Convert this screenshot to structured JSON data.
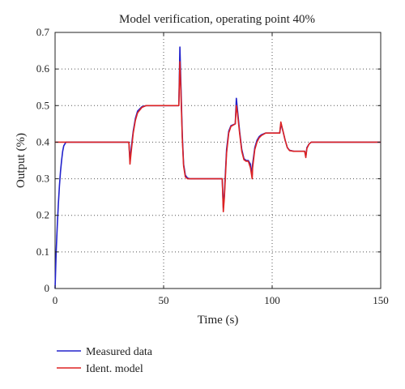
{
  "chart_data": {
    "type": "line",
    "title": "Model verification, operating point 40%",
    "xlabel": "Time (s)",
    "ylabel": "Output (%)",
    "xlim": [
      0,
      150
    ],
    "ylim": [
      0,
      0.7
    ],
    "xticks": [
      0,
      50,
      100,
      150
    ],
    "yticks": [
      0,
      0.1,
      0.2,
      0.3,
      0.4,
      0.5,
      0.6,
      0.7
    ],
    "xtick_labels": [
      "0",
      "50",
      "100",
      "150"
    ],
    "ytick_labels": [
      "0",
      "0.1",
      "0.2",
      "0.3",
      "0.4",
      "0.5",
      "0.6",
      "0.7"
    ],
    "grid": true,
    "grid_style": "dotted",
    "legend_position": "below plot, left",
    "series": [
      {
        "name": "Measured data",
        "color": "#2222cc",
        "x": [
          0,
          0.5,
          1,
          1.5,
          2,
          2.5,
          3,
          3.5,
          4,
          5,
          34,
          34.5,
          35,
          36,
          37,
          38,
          40,
          42,
          45,
          57,
          57.5,
          58,
          58.6,
          59.2,
          60,
          61,
          62,
          63,
          65,
          77,
          77.5,
          78,
          79,
          80,
          81,
          83,
          83.5,
          84,
          85,
          86,
          87,
          88,
          89,
          90,
          90.8,
          91,
          92,
          93,
          94,
          95,
          97,
          103.5,
          104,
          105,
          106,
          107,
          108,
          110,
          115,
          115.5,
          116,
          117,
          118,
          120,
          125,
          150
        ],
        "y": [
          0,
          0.1,
          0.17,
          0.23,
          0.28,
          0.32,
          0.35,
          0.375,
          0.39,
          0.4,
          0.4,
          0.35,
          0.38,
          0.43,
          0.465,
          0.485,
          0.497,
          0.5,
          0.5,
          0.5,
          0.66,
          0.55,
          0.42,
          0.34,
          0.31,
          0.302,
          0.3,
          0.3,
          0.3,
          0.3,
          0.22,
          0.26,
          0.38,
          0.43,
          0.445,
          0.45,
          0.52,
          0.49,
          0.43,
          0.38,
          0.355,
          0.35,
          0.35,
          0.34,
          0.31,
          0.34,
          0.385,
          0.405,
          0.415,
          0.42,
          0.425,
          0.425,
          0.45,
          0.43,
          0.405,
          0.385,
          0.378,
          0.375,
          0.375,
          0.36,
          0.385,
          0.395,
          0.4,
          0.4,
          0.4,
          0.4
        ]
      },
      {
        "name": "Ident. model",
        "color": "#dd2222",
        "x": [
          0,
          0.5,
          1,
          1.5,
          2,
          2.5,
          3,
          4,
          5,
          34,
          34.5,
          35,
          36,
          37,
          38,
          40,
          42,
          45,
          57,
          57.5,
          58,
          58.6,
          59.2,
          60,
          61,
          62,
          63,
          65,
          77,
          77.5,
          78,
          79,
          80,
          81,
          83,
          83.5,
          84,
          85,
          86,
          87,
          88,
          89,
          90,
          90.8,
          91,
          92,
          93,
          94,
          95,
          97,
          103.5,
          104,
          105,
          106,
          107,
          108,
          110,
          115,
          115.5,
          116,
          117,
          118,
          120,
          125,
          150
        ],
        "y": [
          0.4,
          0.4,
          0.4,
          0.4,
          0.4,
          0.4,
          0.4,
          0.4,
          0.4,
          0.4,
          0.34,
          0.37,
          0.425,
          0.46,
          0.48,
          0.495,
          0.5,
          0.5,
          0.5,
          0.62,
          0.53,
          0.41,
          0.335,
          0.305,
          0.3,
          0.3,
          0.3,
          0.3,
          0.3,
          0.21,
          0.25,
          0.37,
          0.425,
          0.443,
          0.45,
          0.5,
          0.48,
          0.425,
          0.375,
          0.352,
          0.348,
          0.348,
          0.33,
          0.3,
          0.33,
          0.38,
          0.4,
          0.412,
          0.418,
          0.425,
          0.425,
          0.455,
          0.43,
          0.405,
          0.385,
          0.377,
          0.375,
          0.375,
          0.358,
          0.383,
          0.395,
          0.4,
          0.4,
          0.4,
          0.4
        ]
      }
    ]
  }
}
